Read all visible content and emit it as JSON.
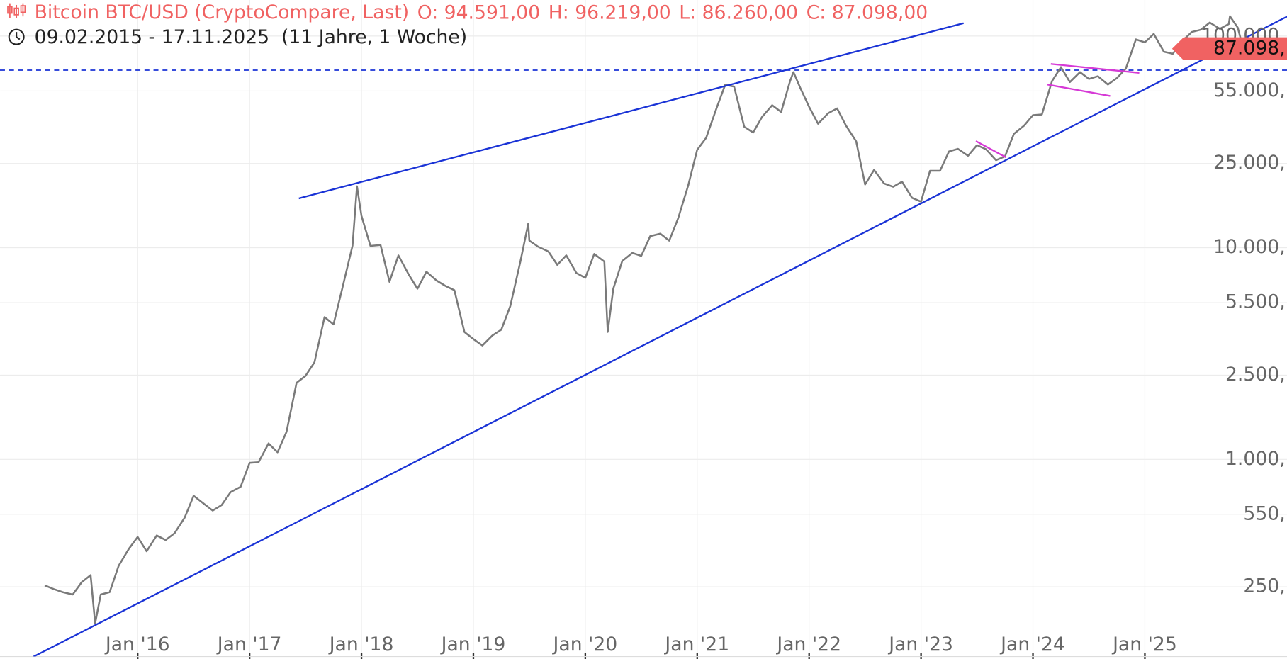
{
  "chart_data": {
    "type": "line",
    "title": "Bitcoin BTC/USD (CryptoCompare, Last)",
    "ohlc_labels": [
      "O: 94.591,00",
      "H: 96.219,00",
      "L: 86.260,00",
      "C: 87.098,00"
    ],
    "period": "09.02.2015 - 17.11.2025  (11 Jahre, 1 Woche)",
    "log_y": true,
    "grid": true,
    "xlim": [
      2014.77,
      2026.27
    ],
    "ylim": [
      114,
      148000
    ],
    "xticks": [
      {
        "value": 2016,
        "label": "Jan '16"
      },
      {
        "value": 2017,
        "label": "Jan '17"
      },
      {
        "value": 2018,
        "label": "Jan '18"
      },
      {
        "value": 2019,
        "label": "Jan '19"
      },
      {
        "value": 2020,
        "label": "Jan '20"
      },
      {
        "value": 2021,
        "label": "Jan '21"
      },
      {
        "value": 2022,
        "label": "Jan '22"
      },
      {
        "value": 2023,
        "label": "Jan '23"
      },
      {
        "value": 2024,
        "label": "Jan '24"
      },
      {
        "value": 2025,
        "label": "Jan '25"
      }
    ],
    "yticks": [
      {
        "value": 250,
        "label": "250,"
      },
      {
        "value": 550,
        "label": "550,"
      },
      {
        "value": 1000,
        "label": "1.000,"
      },
      {
        "value": 2500,
        "label": "2.500,"
      },
      {
        "value": 5500,
        "label": "5.500,"
      },
      {
        "value": 10000,
        "label": "10.000,"
      },
      {
        "value": 25000,
        "label": "25.000,"
      },
      {
        "value": 55000,
        "label": "55.000,"
      },
      {
        "value": 100000,
        "label": "100.000,"
      }
    ],
    "series": [
      {
        "color": "#7a7a7a",
        "x": [
          2015.17,
          2015.25,
          2015.33,
          2015.42,
          2015.5,
          2015.58,
          2015.62,
          2015.67,
          2015.75,
          2015.83,
          2015.92,
          2016.0,
          2016.08,
          2016.17,
          2016.25,
          2016.33,
          2016.42,
          2016.5,
          2016.58,
          2016.67,
          2016.75,
          2016.83,
          2016.92,
          2017.0,
          2017.08,
          2017.17,
          2017.25,
          2017.33,
          2017.42,
          2017.5,
          2017.58,
          2017.67,
          2017.75,
          2017.83,
          2017.92,
          2017.96,
          2018.0,
          2018.08,
          2018.17,
          2018.25,
          2018.33,
          2018.42,
          2018.5,
          2018.58,
          2018.67,
          2018.75,
          2018.83,
          2018.92,
          2019.0,
          2019.08,
          2019.17,
          2019.25,
          2019.33,
          2019.42,
          2019.49,
          2019.5,
          2019.58,
          2019.67,
          2019.75,
          2019.83,
          2019.92,
          2020.0,
          2020.08,
          2020.17,
          2020.2,
          2020.25,
          2020.33,
          2020.42,
          2020.5,
          2020.58,
          2020.67,
          2020.75,
          2020.83,
          2020.92,
          2021.0,
          2021.08,
          2021.17,
          2021.25,
          2021.33,
          2021.42,
          2021.5,
          2021.58,
          2021.67,
          2021.75,
          2021.83,
          2021.86,
          2021.92,
          2022.0,
          2022.08,
          2022.17,
          2022.25,
          2022.33,
          2022.42,
          2022.5,
          2022.58,
          2022.67,
          2022.75,
          2022.83,
          2022.92,
          2023.0,
          2023.08,
          2023.17,
          2023.25,
          2023.33,
          2023.42,
          2023.5,
          2023.58,
          2023.67,
          2023.75,
          2023.83,
          2023.92,
          2024.0,
          2024.08,
          2024.17,
          2024.25,
          2024.33,
          2024.42,
          2024.5,
          2024.58,
          2024.67,
          2024.75,
          2024.83,
          2024.92,
          2025.0,
          2025.08,
          2025.17,
          2025.25,
          2025.33,
          2025.42,
          2025.5,
          2025.58,
          2025.67,
          2025.75,
          2025.76,
          2025.83,
          2025.88
        ],
        "values": [
          254,
          244,
          236,
          230,
          263,
          284,
          168,
          230,
          236,
          314,
          377,
          430,
          368,
          437,
          416,
          448,
          531,
          673,
          624,
          573,
          608,
          700,
          742,
          963,
          970,
          1190,
          1080,
          1350,
          2300,
          2480,
          2875,
          4700,
          4340,
          6470,
          10230,
          19500,
          14150,
          10200,
          10300,
          6900,
          9200,
          7500,
          6400,
          7700,
          7000,
          6600,
          6300,
          4000,
          3700,
          3450,
          3850,
          4100,
          5300,
          8600,
          13000,
          10800,
          10100,
          9600,
          8300,
          9200,
          7600,
          7200,
          9350,
          8600,
          4000,
          6400,
          8650,
          9450,
          9150,
          11350,
          11650,
          10800,
          13800,
          19700,
          29000,
          33100,
          45200,
          58800,
          57700,
          37300,
          35000,
          41500,
          47100,
          43800,
          61300,
          67500,
          57000,
          46300,
          38500,
          43200,
          45500,
          37700,
          31800,
          19900,
          23300,
          20100,
          19400,
          20500,
          17200,
          16500,
          23100,
          23100,
          28500,
          29300,
          27200,
          30500,
          29200,
          25900,
          27000,
          34500,
          37700,
          42300,
          42600,
          61200,
          71300,
          60600,
          67500,
          62700,
          64600,
          59000,
          63300,
          70200,
          96400,
          93400,
          102400,
          84300,
          82500,
          94200,
          104600,
          107100,
          115800,
          108200,
          114000,
          124000,
          109500,
          87098
        ]
      }
    ],
    "trendlines": [
      {
        "color": "#1a33d6",
        "x": [
          2015.07,
          2026.56
        ],
        "y": [
          117,
          148000
        ]
      },
      {
        "color": "#1a33d6",
        "x": [
          2017.44,
          2023.38
        ],
        "y": [
          17100,
          115000
        ]
      },
      {
        "color": "#d63ad6",
        "x": [
          2024.16,
          2024.95
        ],
        "y": [
          73800,
          67000
        ]
      },
      {
        "color": "#d63ad6",
        "x": [
          2024.13,
          2024.69
        ],
        "y": [
          59000,
          52100
        ]
      },
      {
        "color": "#d63ad6",
        "x": [
          2023.49,
          2023.76
        ],
        "y": [
          31900,
          26700
        ]
      }
    ],
    "hline": {
      "value": 69000,
      "color": "#1a33d6"
    },
    "last_price": {
      "value": 87098,
      "label": "87.098,",
      "color": "#f06262"
    }
  }
}
